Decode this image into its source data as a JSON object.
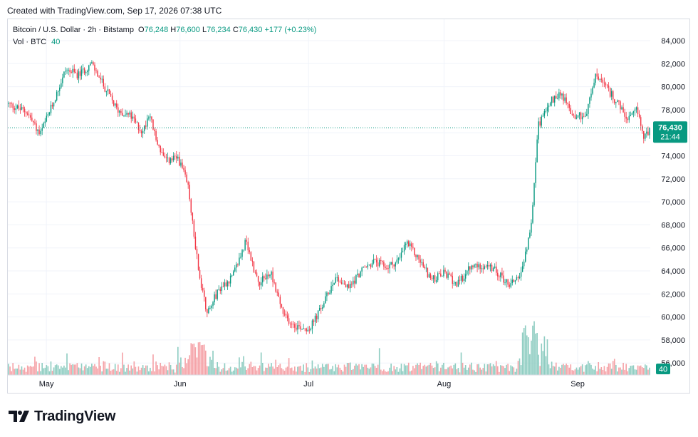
{
  "created_line": "Created with TradingView.com, Sep 17, 2026 07:38 UTC",
  "legend": {
    "symbol": "Bitcoin / U.S. Dollar · 2h · Bitstamp",
    "o_label": "O",
    "o": "76,248",
    "h_label": "H",
    "h": "76,600",
    "l_label": "L",
    "l": "76,234",
    "c_label": "C",
    "c": "76,430",
    "change": "+177 (+0.23%)",
    "vol_label": "Vol · BTC",
    "vol": "40"
  },
  "price_badge": {
    "price": "76,430",
    "countdown": "21:44"
  },
  "brand": "TradingView",
  "colors": {
    "up": "#089981",
    "down": "#f23645",
    "vol_up": "#8fcdc2",
    "vol_down": "#f5a3a8",
    "badge": "#089981"
  },
  "chart_data": {
    "type": "candlestick",
    "symbol": "Bitcoin / U.S. Dollar",
    "interval": "2h",
    "exchange": "Bitstamp",
    "x_ticks": [
      "May",
      "Jun",
      "Jul",
      "Aug",
      "Sep"
    ],
    "y_ticks": [
      "56,000",
      "58,000",
      "60,000",
      "62,000",
      "64,000",
      "66,000",
      "68,000",
      "70,000",
      "72,000",
      "74,000",
      "76,000",
      "78,000",
      "80,000",
      "82,000",
      "84,000"
    ],
    "y_range": [
      55000,
      84500
    ],
    "last_price": 76430,
    "grid": true,
    "price_path": [
      {
        "t": 0.0,
        "p": 78500
      },
      {
        "t": 0.03,
        "p": 77800
      },
      {
        "t": 0.05,
        "p": 75800
      },
      {
        "t": 0.07,
        "p": 78500
      },
      {
        "t": 0.09,
        "p": 81500
      },
      {
        "t": 0.11,
        "p": 81000
      },
      {
        "t": 0.13,
        "p": 82000
      },
      {
        "t": 0.15,
        "p": 80000
      },
      {
        "t": 0.17,
        "p": 78000
      },
      {
        "t": 0.19,
        "p": 77500
      },
      {
        "t": 0.21,
        "p": 76000
      },
      {
        "t": 0.22,
        "p": 77800
      },
      {
        "t": 0.23,
        "p": 75500
      },
      {
        "t": 0.245,
        "p": 73500
      },
      {
        "t": 0.265,
        "p": 73800
      },
      {
        "t": 0.28,
        "p": 71500
      },
      {
        "t": 0.29,
        "p": 67000
      },
      {
        "t": 0.3,
        "p": 63000
      },
      {
        "t": 0.31,
        "p": 60500
      },
      {
        "t": 0.33,
        "p": 62500
      },
      {
        "t": 0.35,
        "p": 63500
      },
      {
        "t": 0.37,
        "p": 66500
      },
      {
        "t": 0.39,
        "p": 63000
      },
      {
        "t": 0.41,
        "p": 63800
      },
      {
        "t": 0.43,
        "p": 60000
      },
      {
        "t": 0.45,
        "p": 59200
      },
      {
        "t": 0.47,
        "p": 59000
      },
      {
        "t": 0.49,
        "p": 61000
      },
      {
        "t": 0.51,
        "p": 63500
      },
      {
        "t": 0.53,
        "p": 62500
      },
      {
        "t": 0.55,
        "p": 64000
      },
      {
        "t": 0.57,
        "p": 64800
      },
      {
        "t": 0.59,
        "p": 64300
      },
      {
        "t": 0.61,
        "p": 65000
      },
      {
        "t": 0.62,
        "p": 66500
      },
      {
        "t": 0.64,
        "p": 65000
      },
      {
        "t": 0.66,
        "p": 63200
      },
      {
        "t": 0.68,
        "p": 63800
      },
      {
        "t": 0.7,
        "p": 62800
      },
      {
        "t": 0.72,
        "p": 64300
      },
      {
        "t": 0.74,
        "p": 64500
      },
      {
        "t": 0.76,
        "p": 64000
      },
      {
        "t": 0.78,
        "p": 62800
      },
      {
        "t": 0.8,
        "p": 63800
      },
      {
        "t": 0.815,
        "p": 68000
      },
      {
        "t": 0.825,
        "p": 76500
      },
      {
        "t": 0.84,
        "p": 78500
      },
      {
        "t": 0.86,
        "p": 79500
      },
      {
        "t": 0.88,
        "p": 77500
      },
      {
        "t": 0.9,
        "p": 77500
      },
      {
        "t": 0.915,
        "p": 81000
      },
      {
        "t": 0.93,
        "p": 80000
      },
      {
        "t": 0.95,
        "p": 78500
      },
      {
        "t": 0.965,
        "p": 77000
      },
      {
        "t": 0.98,
        "p": 78000
      },
      {
        "t": 0.99,
        "p": 75500
      },
      {
        "t": 1.0,
        "p": 76430
      }
    ]
  }
}
